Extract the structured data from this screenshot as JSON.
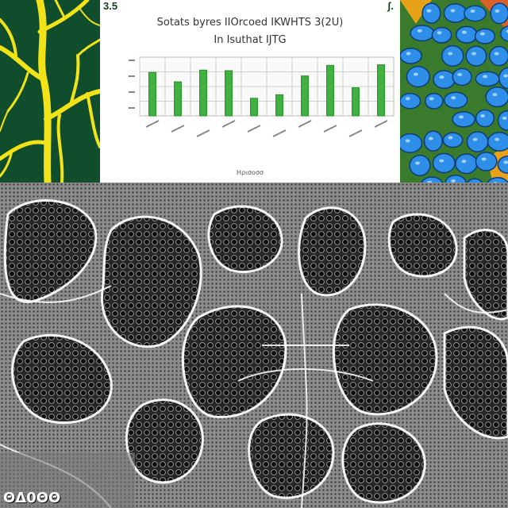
{
  "chart_panel": {
    "corner_left": "3.5",
    "corner_right": "ʃ.",
    "title_line1": "Sotats byres IIOrcoed IKWHTS 3(2U)",
    "title_line2": "In Isuthat IJTG",
    "footer": "Ηρισοσσ"
  },
  "chart_data": {
    "type": "bar",
    "values": [
      0.74,
      0.58,
      0.78,
      0.77,
      0.3,
      0.36,
      0.68,
      0.86,
      0.48,
      0.87
    ],
    "ylim": [
      0,
      1
    ],
    "grid": true
  },
  "bottom_label": {
    "text": "ΘΔ0ΘΘ"
  },
  "colors": {
    "bar": "#3fb23f",
    "bar_edge": "#2c8f2c",
    "grid": "#d0d0d0",
    "branch": "#f2e318",
    "foliage_bg": "#0f4d2d",
    "berry": "#2f8ee8",
    "leaf": "#5aa53a"
  }
}
